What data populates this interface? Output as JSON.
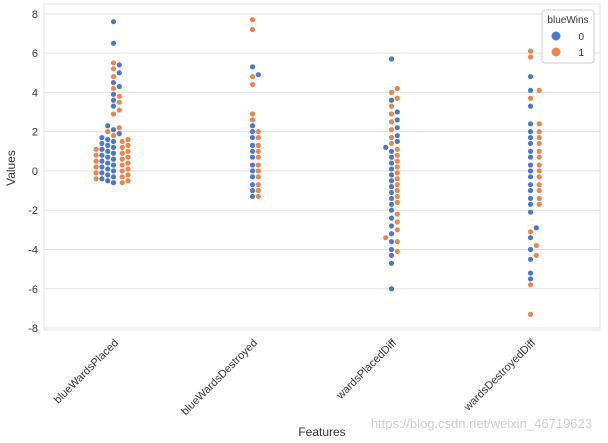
{
  "chart_data": {
    "type": "swarm",
    "xlabel": "Features",
    "ylabel": "Values",
    "categories": [
      "blueWardsPlaced",
      "blueWardsDestroyed",
      "wardsPlacedDiff",
      "wardsDestroyedDiff"
    ],
    "yticks": [
      -8,
      -6,
      -4,
      -2,
      0,
      2,
      4,
      6,
      8
    ],
    "ylim": [
      -8.1,
      8.5
    ],
    "grid": "horizontal",
    "legend": {
      "title": "blueWins",
      "placement": "top-right",
      "entries": [
        {
          "label": "0",
          "color": "#4878d0"
        },
        {
          "label": "1",
          "color": "#ee854a"
        }
      ]
    },
    "series": [
      {
        "category": "blueWardsPlaced",
        "description": "Standardized values; dense mass between about -0.6 and 1.6, sparse outliers up to about 7.6",
        "values_blueWins_0": [
          7.6,
          6.5,
          5.4,
          5.0,
          4.5,
          4.3,
          3.9,
          3.6,
          3.3,
          2.3,
          2.1,
          1.9,
          1.7,
          1.6,
          1.5,
          1.4,
          1.3,
          1.2,
          1.1,
          1.0,
          0.9,
          0.8,
          0.7,
          0.6,
          0.5,
          0.4,
          0.3,
          0.2,
          0.1,
          0.0,
          -0.1,
          -0.2,
          -0.3,
          -0.4,
          -0.5,
          -0.6
        ],
        "values_blueWins_1": [
          5.5,
          5.2,
          4.8,
          4.2,
          3.8,
          3.5,
          3.1,
          2.9,
          2.2,
          2.0,
          1.8,
          1.6,
          1.5,
          1.3,
          1.2,
          1.1,
          1.0,
          0.9,
          0.8,
          0.7,
          0.6,
          0.5,
          0.4,
          0.3,
          0.2,
          0.1,
          0.0,
          -0.1,
          -0.2,
          -0.3,
          -0.4,
          -0.5,
          -0.6
        ]
      },
      {
        "category": "blueWardsDestroyed",
        "description": "Discrete levels from about -1.3 to 2.0 in steps of about 0.33, outliers to 7.7",
        "values_blueWins_0": [
          5.3,
          4.9,
          2.3,
          2.0,
          1.7,
          1.3,
          1.0,
          0.7,
          0.3,
          0.0,
          -0.3,
          -0.7,
          -1.0,
          -1.3
        ],
        "values_blueWins_1": [
          7.7,
          7.2,
          4.8,
          4.4,
          2.9,
          2.6,
          2.0,
          1.7,
          1.3,
          1.0,
          0.7,
          0.3,
          0.0,
          -0.3,
          -0.7,
          -1.0,
          -1.3
        ]
      },
      {
        "category": "wardsPlacedDiff",
        "description": "Spread from about -6.0 to 5.7, dense around 0",
        "values_blueWins_0": [
          5.7,
          3.6,
          3.0,
          2.6,
          2.2,
          1.8,
          1.5,
          1.2,
          1.0,
          0.7,
          0.4,
          0.1,
          -0.2,
          -0.5,
          -0.8,
          -1.1,
          -1.4,
          -1.7,
          -2.0,
          -2.4,
          -2.8,
          -3.2,
          -3.6,
          -4.0,
          -4.3,
          -4.7,
          -6.0
        ],
        "values_blueWins_1": [
          4.2,
          4.0,
          3.7,
          3.3,
          2.9,
          2.5,
          2.1,
          1.7,
          1.4,
          1.1,
          0.8,
          0.5,
          0.2,
          -0.1,
          -0.4,
          -0.7,
          -1.0,
          -1.3,
          -1.6,
          -2.2,
          -2.6,
          -3.0,
          -3.4,
          -3.6,
          -4.1
        ]
      },
      {
        "category": "wardsDestroyedDiff",
        "description": "Discrete levels from about -2.1 to 1.7 in steps of about 0.35, outliers from -7.3 to 6.1",
        "values_blueWins_0": [
          4.8,
          4.1,
          3.3,
          2.4,
          2.0,
          1.7,
          1.4,
          1.0,
          0.7,
          0.3,
          0.0,
          -0.3,
          -0.7,
          -1.0,
          -1.4,
          -1.7,
          -2.1,
          -2.9,
          -3.4,
          -4.0,
          -4.5,
          -5.2,
          -5.5
        ],
        "values_blueWins_1": [
          6.1,
          5.8,
          4.1,
          3.7,
          2.4,
          2.0,
          1.7,
          1.4,
          1.0,
          0.7,
          0.3,
          0.0,
          -0.3,
          -0.7,
          -1.0,
          -1.4,
          -1.7,
          -3.1,
          -3.8,
          -4.3,
          -5.8,
          -7.3
        ]
      }
    ]
  },
  "watermark": "https://blog.csdn.net/weixin_46719623"
}
